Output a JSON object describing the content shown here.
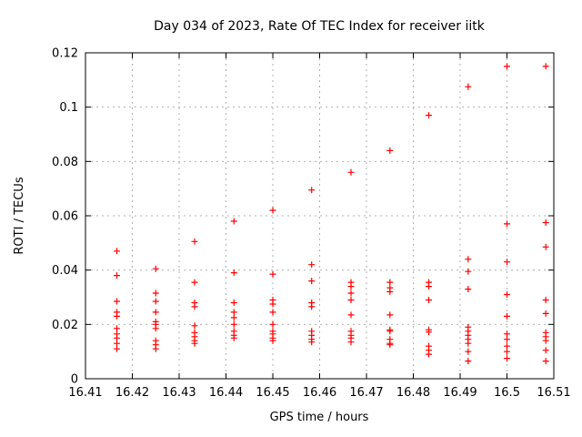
{
  "page": {
    "background": "#ffffff"
  },
  "chart_data": {
    "type": "scatter",
    "title": "Day 034 of 2023, Rate Of TEC Index for receiver iitk",
    "xlabel": "GPS time / hours",
    "ylabel": "ROTI / TECUs",
    "marker": "plus",
    "marker_color": "#ff0000",
    "grid": true,
    "legend": "none",
    "xlim": [
      16.41,
      16.51
    ],
    "ylim": [
      0,
      0.12
    ],
    "x_ticks": [
      16.41,
      16.42,
      16.43,
      16.44,
      16.45,
      16.46,
      16.47,
      16.48,
      16.49,
      16.5,
      16.51
    ],
    "x_tick_labels": [
      "16.41",
      "16.42",
      "16.43",
      "16.44",
      "16.45",
      "16.46",
      "16.47",
      "16.48",
      "16.49",
      "16.5",
      "16.51"
    ],
    "y_ticks": [
      0,
      0.02,
      0.04,
      0.06,
      0.08,
      0.1,
      0.12
    ],
    "y_tick_labels": [
      "0",
      "0.02",
      "0.04",
      "0.06",
      "0.08",
      "0.1",
      "0.12"
    ],
    "series": [
      {
        "name": "ROTI",
        "points": [
          [
            16.4167,
            0.047
          ],
          [
            16.4167,
            0.038
          ],
          [
            16.4167,
            0.0285
          ],
          [
            16.4167,
            0.0245
          ],
          [
            16.4167,
            0.023
          ],
          [
            16.4167,
            0.0185
          ],
          [
            16.4167,
            0.0165
          ],
          [
            16.4167,
            0.015
          ],
          [
            16.4167,
            0.013
          ],
          [
            16.4167,
            0.011
          ],
          [
            16.425,
            0.0405
          ],
          [
            16.425,
            0.0315
          ],
          [
            16.425,
            0.0285
          ],
          [
            16.425,
            0.0245
          ],
          [
            16.425,
            0.021
          ],
          [
            16.425,
            0.02
          ],
          [
            16.425,
            0.0185
          ],
          [
            16.425,
            0.014
          ],
          [
            16.425,
            0.0125
          ],
          [
            16.425,
            0.011
          ],
          [
            16.4333,
            0.0505
          ],
          [
            16.4333,
            0.0355
          ],
          [
            16.4333,
            0.028
          ],
          [
            16.4333,
            0.0265
          ],
          [
            16.4333,
            0.0195
          ],
          [
            16.4333,
            0.017
          ],
          [
            16.4333,
            0.0155
          ],
          [
            16.4333,
            0.014
          ],
          [
            16.4333,
            0.013
          ],
          [
            16.4417,
            0.058
          ],
          [
            16.4417,
            0.039
          ],
          [
            16.4417,
            0.028
          ],
          [
            16.4417,
            0.0245
          ],
          [
            16.4417,
            0.0225
          ],
          [
            16.4417,
            0.02
          ],
          [
            16.4417,
            0.0175
          ],
          [
            16.4417,
            0.016
          ],
          [
            16.4417,
            0.015
          ],
          [
            16.45,
            0.062
          ],
          [
            16.45,
            0.0385
          ],
          [
            16.45,
            0.029
          ],
          [
            16.45,
            0.0275
          ],
          [
            16.45,
            0.0245
          ],
          [
            16.45,
            0.02
          ],
          [
            16.45,
            0.0175
          ],
          [
            16.45,
            0.0165
          ],
          [
            16.45,
            0.015
          ],
          [
            16.45,
            0.014
          ],
          [
            16.4583,
            0.0695
          ],
          [
            16.4583,
            0.042
          ],
          [
            16.4583,
            0.036
          ],
          [
            16.4583,
            0.028
          ],
          [
            16.4583,
            0.0265
          ],
          [
            16.4583,
            0.0175
          ],
          [
            16.4583,
            0.016
          ],
          [
            16.4583,
            0.0145
          ],
          [
            16.4583,
            0.0135
          ],
          [
            16.4667,
            0.076
          ],
          [
            16.4667,
            0.0355
          ],
          [
            16.4667,
            0.034
          ],
          [
            16.4667,
            0.0315
          ],
          [
            16.4667,
            0.029
          ],
          [
            16.4667,
            0.0235
          ],
          [
            16.4667,
            0.0175
          ],
          [
            16.4667,
            0.016
          ],
          [
            16.4667,
            0.015
          ],
          [
            16.4667,
            0.0135
          ],
          [
            16.475,
            0.084
          ],
          [
            16.475,
            0.0355
          ],
          [
            16.475,
            0.0335
          ],
          [
            16.475,
            0.032
          ],
          [
            16.475,
            0.0235
          ],
          [
            16.475,
            0.018
          ],
          [
            16.475,
            0.0175
          ],
          [
            16.475,
            0.0145
          ],
          [
            16.475,
            0.013
          ],
          [
            16.475,
            0.0125
          ],
          [
            16.4833,
            0.097
          ],
          [
            16.4833,
            0.0355
          ],
          [
            16.4833,
            0.034
          ],
          [
            16.4833,
            0.029
          ],
          [
            16.4833,
            0.018
          ],
          [
            16.4833,
            0.0172
          ],
          [
            16.4833,
            0.012
          ],
          [
            16.4833,
            0.0105
          ],
          [
            16.4833,
            0.009
          ],
          [
            16.4917,
            0.1075
          ],
          [
            16.4917,
            0.044
          ],
          [
            16.4917,
            0.0395
          ],
          [
            16.4917,
            0.033
          ],
          [
            16.4917,
            0.019
          ],
          [
            16.4917,
            0.0175
          ],
          [
            16.4917,
            0.016
          ],
          [
            16.4917,
            0.0145
          ],
          [
            16.4917,
            0.013
          ],
          [
            16.4917,
            0.01
          ],
          [
            16.4917,
            0.0065
          ],
          [
            16.5,
            0.115
          ],
          [
            16.5,
            0.057
          ],
          [
            16.5,
            0.043
          ],
          [
            16.5,
            0.031
          ],
          [
            16.5,
            0.023
          ],
          [
            16.5,
            0.0165
          ],
          [
            16.5,
            0.0145
          ],
          [
            16.5,
            0.012
          ],
          [
            16.5,
            0.01
          ],
          [
            16.5,
            0.0075
          ],
          [
            16.5083,
            0.115
          ],
          [
            16.5083,
            0.0575
          ],
          [
            16.5083,
            0.0485
          ],
          [
            16.5083,
            0.029
          ],
          [
            16.5083,
            0.024
          ],
          [
            16.5083,
            0.017
          ],
          [
            16.5083,
            0.0155
          ],
          [
            16.5083,
            0.014
          ],
          [
            16.5083,
            0.0105
          ],
          [
            16.5083,
            0.0065
          ]
        ]
      }
    ]
  }
}
